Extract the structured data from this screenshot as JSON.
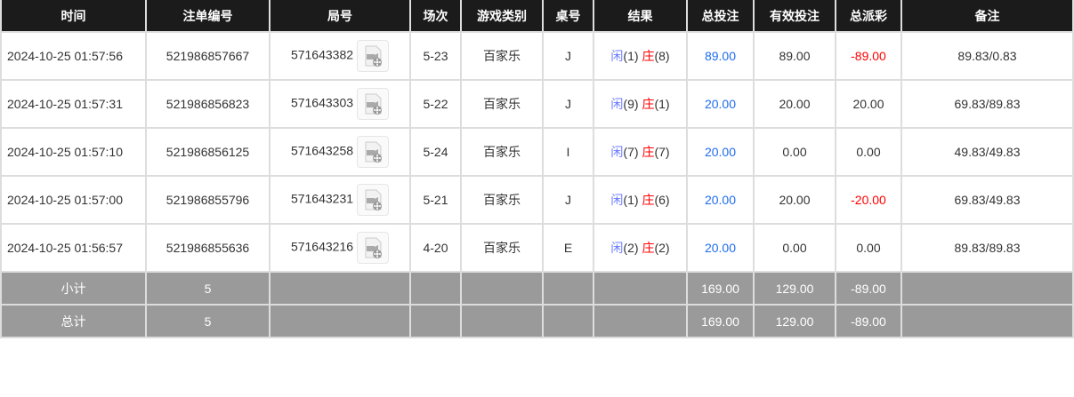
{
  "headers": [
    "时间",
    "注单编号",
    "局号",
    "场次",
    "游戏类别",
    "桌号",
    "结果",
    "总投注",
    "有效投注",
    "总派彩",
    "备注"
  ],
  "rows": [
    {
      "time": "2024-10-25 01:57:56",
      "bet_id": "521986857667",
      "round": "571643382",
      "session": "5-23",
      "game": "百家乐",
      "table": "J",
      "player": "闲",
      "player_pts": "(1)",
      "banker": "庄",
      "banker_pts": "(8)",
      "total_bet": "89.00",
      "valid_bet": "89.00",
      "payout": "-89.00",
      "payout_neg": true,
      "note": "89.83/0.83"
    },
    {
      "time": "2024-10-25 01:57:31",
      "bet_id": "521986856823",
      "round": "571643303",
      "session": "5-22",
      "game": "百家乐",
      "table": "J",
      "player": "闲",
      "player_pts": "(9)",
      "banker": "庄",
      "banker_pts": "(1)",
      "total_bet": "20.00",
      "valid_bet": "20.00",
      "payout": "20.00",
      "payout_neg": false,
      "note": "69.83/89.83"
    },
    {
      "time": "2024-10-25 01:57:10",
      "bet_id": "521986856125",
      "round": "571643258",
      "session": "5-24",
      "game": "百家乐",
      "table": "I",
      "player": "闲",
      "player_pts": "(7)",
      "banker": "庄",
      "banker_pts": "(7)",
      "total_bet": "20.00",
      "valid_bet": "0.00",
      "payout": "0.00",
      "payout_neg": false,
      "note": "49.83/49.83"
    },
    {
      "time": "2024-10-25 01:57:00",
      "bet_id": "521986855796",
      "round": "571643231",
      "session": "5-21",
      "game": "百家乐",
      "table": "J",
      "player": "闲",
      "player_pts": "(1)",
      "banker": "庄",
      "banker_pts": "(6)",
      "total_bet": "20.00",
      "valid_bet": "20.00",
      "payout": "-20.00",
      "payout_neg": true,
      "note": "69.83/49.83"
    },
    {
      "time": "2024-10-25 01:56:57",
      "bet_id": "521986855636",
      "round": "571643216",
      "session": "4-20",
      "game": "百家乐",
      "table": "E",
      "player": "闲",
      "player_pts": "(2)",
      "banker": "庄",
      "banker_pts": "(2)",
      "total_bet": "20.00",
      "valid_bet": "0.00",
      "payout": "0.00",
      "payout_neg": false,
      "note": "89.83/89.83"
    }
  ],
  "subtotal": {
    "label": "小计",
    "count": "5",
    "total_bet": "169.00",
    "valid_bet": "129.00",
    "payout": "-89.00"
  },
  "total": {
    "label": "总计",
    "count": "5",
    "total_bet": "169.00",
    "valid_bet": "129.00",
    "payout": "-89.00"
  },
  "colors": {
    "header_bg": "#1b1b1b",
    "summary_bg": "#9a9a9a",
    "bet_blue": "#1e6cf0",
    "negative_red": "#ff0000"
  },
  "icons": {
    "replay": "video-replay-icon"
  }
}
